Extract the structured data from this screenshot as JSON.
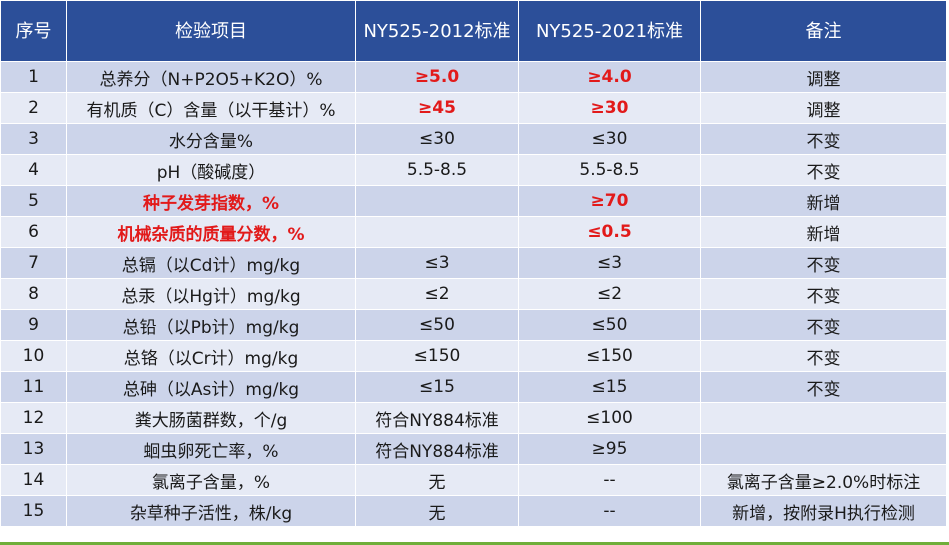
{
  "table": {
    "headers": [
      "序号",
      "检验项目",
      "NY525-2012标准",
      "NY525-2021标准",
      "备注"
    ],
    "rows": [
      {
        "no": "1",
        "item": "总养分（N+P2O5+K2O）%",
        "std2012": "≥5.0",
        "std2021": "≥4.0",
        "note": "调整",
        "item_red": false,
        "std2012_red": true,
        "std2021_red": true
      },
      {
        "no": "2",
        "item": "有机质（C）含量（以干基计）%",
        "std2012": "≥45",
        "std2021": "≥30",
        "note": "调整",
        "item_red": false,
        "std2012_red": true,
        "std2021_red": true
      },
      {
        "no": "3",
        "item": "水分含量%",
        "std2012": "≤30",
        "std2021": "≤30",
        "note": "不变",
        "item_red": false,
        "std2012_red": false,
        "std2021_red": false
      },
      {
        "no": "4",
        "item": "pH（酸碱度）",
        "std2012": "5.5-8.5",
        "std2021": "5.5-8.5",
        "note": "不变",
        "item_red": false,
        "std2012_red": false,
        "std2021_red": false
      },
      {
        "no": "5",
        "item": "种子发芽指数，%",
        "std2012": "",
        "std2021": "≥70",
        "note": "新增",
        "item_red": true,
        "std2012_red": false,
        "std2021_red": true
      },
      {
        "no": "6",
        "item": "机械杂质的质量分数，%",
        "std2012": "",
        "std2021": "≤0.5",
        "note": "新增",
        "item_red": true,
        "std2012_red": false,
        "std2021_red": true
      },
      {
        "no": "7",
        "item": "总镉（以Cd计）mg/kg",
        "std2012": "≤3",
        "std2021": "≤3",
        "note": "不变",
        "item_red": false,
        "std2012_red": false,
        "std2021_red": false
      },
      {
        "no": "8",
        "item": "总汞（以Hg计）mg/kg",
        "std2012": "≤2",
        "std2021": "≤2",
        "note": "不变",
        "item_red": false,
        "std2012_red": false,
        "std2021_red": false
      },
      {
        "no": "9",
        "item": "总铅（以Pb计）mg/kg",
        "std2012": "≤50",
        "std2021": "≤50",
        "note": "不变",
        "item_red": false,
        "std2012_red": false,
        "std2021_red": false
      },
      {
        "no": "10",
        "item": "总铬（以Cr计）mg/kg",
        "std2012": "≤150",
        "std2021": "≤150",
        "note": "不变",
        "item_red": false,
        "std2012_red": false,
        "std2021_red": false
      },
      {
        "no": "11",
        "item": "总砷（以As计）mg/kg",
        "std2012": "≤15",
        "std2021": "≤15",
        "note": "不变",
        "item_red": false,
        "std2012_red": false,
        "std2021_red": false
      },
      {
        "no": "12",
        "item": "粪大肠菌群数，个/g",
        "std2012": "符合NY884标准",
        "std2021": "≤100",
        "note": "",
        "item_red": false,
        "std2012_red": false,
        "std2021_red": false
      },
      {
        "no": "13",
        "item": "蛔虫卵死亡率，%",
        "std2012": "符合NY884标准",
        "std2021": "≥95",
        "note": "",
        "item_red": false,
        "std2012_red": false,
        "std2021_red": false
      },
      {
        "no": "14",
        "item": "氯离子含量，%",
        "std2012": "无",
        "std2021": "--",
        "note": "氯离子含量≥2.0%时标注",
        "item_red": false,
        "std2012_red": false,
        "std2021_red": false
      },
      {
        "no": "15",
        "item": "杂草种子活性，株/kg",
        "std2012": "无",
        "std2021": "--",
        "note": "新增，按附录H执行检测",
        "item_red": false,
        "std2012_red": false,
        "std2021_red": false
      }
    ]
  },
  "colors": {
    "header_bg": "#2c4f99",
    "row_dark": "#ccd4ea",
    "row_light": "#e6eaf5",
    "highlight_red": "#e21a1a",
    "accent_green": "#6fae3a"
  }
}
